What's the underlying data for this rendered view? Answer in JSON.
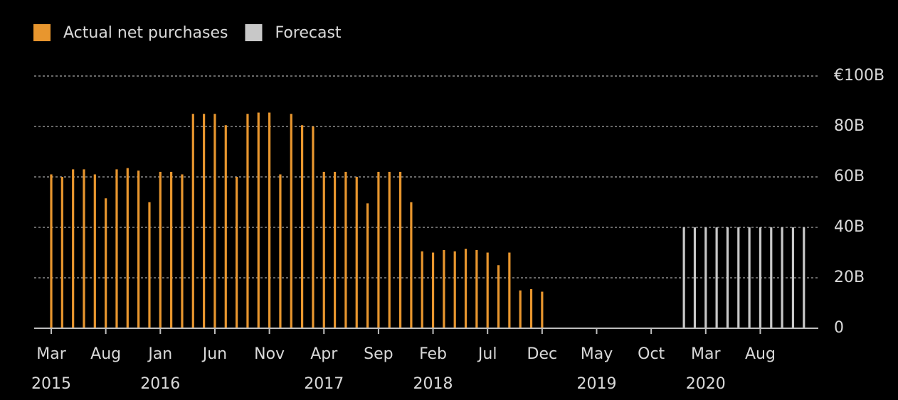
{
  "chart_data": {
    "type": "bar",
    "categories": [
      "Mar",
      null,
      null,
      null,
      null,
      "Aug",
      null,
      null,
      null,
      null,
      "Jan",
      null,
      null,
      null,
      null,
      "Jun",
      null,
      null,
      null,
      null,
      "Nov",
      null,
      null,
      null,
      null,
      "Apr",
      null,
      null,
      null,
      null,
      "Sep",
      null,
      null,
      null,
      null,
      "Feb",
      null,
      null,
      null,
      null,
      "Jul",
      null,
      null,
      null,
      null,
      "Dec",
      null,
      null,
      null,
      null,
      "May",
      null,
      null,
      null,
      null,
      "Oct",
      null,
      null,
      null,
      null,
      "Mar",
      null,
      null,
      null,
      null,
      "Aug",
      null,
      null,
      null,
      null
    ],
    "years": [
      "2015",
      null,
      null,
      null,
      null,
      null,
      null,
      null,
      null,
      null,
      "2016",
      null,
      null,
      null,
      null,
      null,
      null,
      null,
      null,
      null,
      null,
      null,
      null,
      null,
      null,
      "2017",
      null,
      null,
      null,
      null,
      null,
      null,
      null,
      null,
      null,
      "2018",
      null,
      null,
      null,
      null,
      null,
      null,
      null,
      null,
      null,
      null,
      null,
      null,
      null,
      null,
      "2019",
      null,
      null,
      null,
      null,
      null,
      null,
      null,
      null,
      null,
      "2020",
      null,
      null,
      null,
      null,
      null,
      null,
      null,
      null,
      null
    ],
    "series": [
      {
        "name": "Actual net purchases",
        "color": "#e8962e",
        "values": [
          61,
          60,
          63,
          63,
          61,
          51.5,
          63,
          63.5,
          62.5,
          50,
          62,
          62,
          61,
          85,
          85,
          85,
          80.5,
          60,
          85,
          85.5,
          85.5,
          61,
          85,
          80.5,
          80,
          62,
          62,
          62,
          60,
          49.5,
          62,
          62,
          62,
          50,
          30.5,
          30,
          31,
          30.5,
          31.5,
          31,
          30,
          25,
          30,
          15,
          15.5,
          14.5,
          null,
          null,
          null,
          null,
          null,
          null,
          null,
          null,
          null,
          null,
          null,
          null,
          null,
          null,
          null,
          null,
          null,
          null,
          null,
          null,
          null,
          null,
          null,
          null
        ]
      },
      {
        "name": "Forecast",
        "color": "#c8c8c8",
        "values": [
          null,
          null,
          null,
          null,
          null,
          null,
          null,
          null,
          null,
          null,
          null,
          null,
          null,
          null,
          null,
          null,
          null,
          null,
          null,
          null,
          null,
          null,
          null,
          null,
          null,
          null,
          null,
          null,
          null,
          null,
          null,
          null,
          null,
          null,
          null,
          null,
          null,
          null,
          null,
          null,
          null,
          null,
          null,
          null,
          null,
          null,
          null,
          null,
          null,
          null,
          null,
          null,
          null,
          null,
          null,
          null,
          null,
          null,
          40,
          40,
          40,
          40,
          40,
          40,
          40,
          40,
          40,
          40,
          40,
          40
        ]
      }
    ],
    "ylim": [
      0,
      100
    ],
    "yticks": [
      0,
      {
        "value": 20,
        "label": "20B"
      },
      {
        "value": 40,
        "label": "40B"
      },
      {
        "value": 60,
        "label": "60B"
      },
      {
        "value": 80,
        "label": "80B"
      },
      {
        "value": 100,
        "label": "€100B"
      }
    ],
    "grid": true
  }
}
